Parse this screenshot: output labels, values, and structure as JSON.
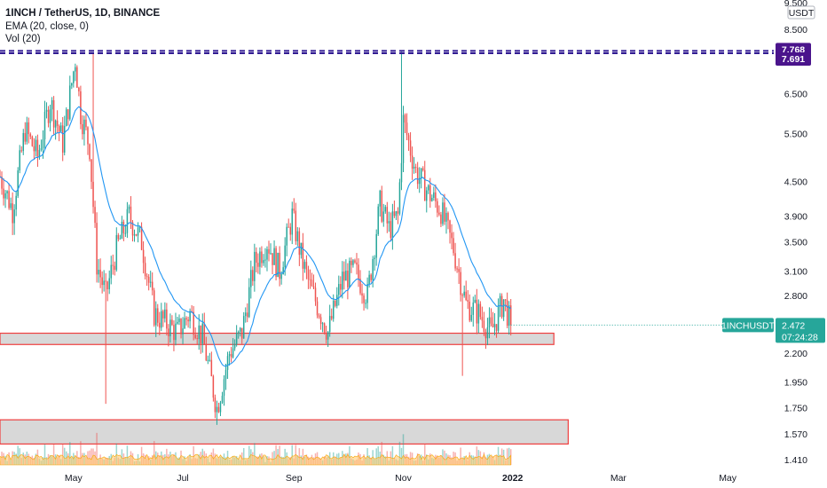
{
  "header": {
    "symbol_line": "1INCH / TetherUS, 1D, BINANCE",
    "ema_line": "EMA (20, close, 0)",
    "vol_line": "Vol (20)"
  },
  "axis": {
    "currency": "USDT",
    "y_ticks": [
      "9.500",
      "8.500",
      "6.500",
      "5.500",
      "4.500",
      "3.900",
      "3.500",
      "3.100",
      "2.800",
      "2.200",
      "1.950",
      "1.750",
      "1.570",
      "1.410"
    ],
    "x_ticks": [
      "May",
      "Jul",
      "Sep",
      "Nov",
      "2022",
      "Mar",
      "May"
    ]
  },
  "price_badges": {
    "top_line": "7.768",
    "bottom_line": "7.691",
    "ticker": "1INCHUSDT",
    "last_price": "2.472",
    "countdown": "07:24:28"
  },
  "colors": {
    "up": "#26a69a",
    "down": "#ef5350",
    "ema": "#2196f3",
    "hline": "#311b92",
    "zone_fill": "#d1d1d1",
    "zone_border": "#ef3e3e",
    "vol_area": "#ffc766",
    "badge_purple": "#4a148c",
    "badge_teal": "#26a69a"
  },
  "chart_data": {
    "type": "candlestick",
    "title": "1INCH / TetherUS, 1D, BINANCE",
    "y_scale": "log",
    "ylim": [
      1.41,
      9.5
    ],
    "x_range": [
      "2021-03-21",
      "2022-05-31"
    ],
    "last_price": 2.472,
    "horizontal_lines": [
      7.768,
      7.691
    ],
    "support_zones": [
      {
        "from": "2021-03-21",
        "to": "2022-01-24",
        "low": 2.28,
        "high": 2.39
      },
      {
        "from": "2021-03-21",
        "to": "2022-02-01",
        "low": 1.505,
        "high": 1.665
      }
    ],
    "price_path": {
      "dates": [
        "2021-03-21",
        "2021-03-28",
        "2021-04-04",
        "2021-04-11",
        "2021-04-18",
        "2021-04-25",
        "2021-05-02",
        "2021-05-05",
        "2021-05-10",
        "2021-05-14",
        "2021-05-19",
        "2021-05-25",
        "2021-06-01",
        "2021-06-08",
        "2021-06-15",
        "2021-06-21",
        "2021-06-28",
        "2021-07-05",
        "2021-07-12",
        "2021-07-20",
        "2021-07-27",
        "2021-08-03",
        "2021-08-10",
        "2021-08-17",
        "2021-08-24",
        "2021-08-31",
        "2021-09-06",
        "2021-09-10",
        "2021-09-20",
        "2021-09-28",
        "2021-10-05",
        "2021-10-12",
        "2021-10-19",
        "2021-10-24",
        "2021-10-29",
        "2021-11-01",
        "2021-11-08",
        "2021-11-15",
        "2021-11-22",
        "2021-11-29",
        "2021-12-06",
        "2021-12-13",
        "2021-12-20",
        "2021-12-27",
        "2021-12-31"
      ],
      "close": [
        4.6,
        4.0,
        5.6,
        5.0,
        6.3,
        5.3,
        7.5,
        6.0,
        5.2,
        3.2,
        2.8,
        3.4,
        3.9,
        3.5,
        2.6,
        2.5,
        2.4,
        2.6,
        2.35,
        1.75,
        2.2,
        2.4,
        3.2,
        3.5,
        3.1,
        3.9,
        3.2,
        2.9,
        2.4,
        3.0,
        3.1,
        2.8,
        4.1,
        3.7,
        3.9,
        5.8,
        4.7,
        4.3,
        4.0,
        3.4,
        2.7,
        2.6,
        2.4,
        2.75,
        2.472
      ]
    },
    "ema_period": 20,
    "volume": "Vol (20) histogram with orange area band along the bottom"
  }
}
